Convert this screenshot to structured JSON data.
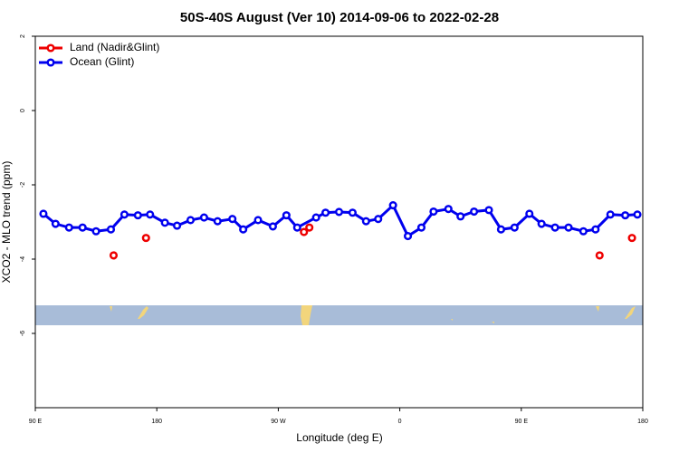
{
  "chart_data": {
    "type": "line",
    "title": "50S-40S August (Ver 10)   2014-09-06 to 2022-02-28",
    "xlabel": "Longitude (deg E)",
    "ylabel": "XCO2 - MLO trend (ppm)",
    "xlim": [
      90,
      540
    ],
    "xticks": [
      {
        "value": 90,
        "label": "90 E"
      },
      {
        "value": 180,
        "label": "180"
      },
      {
        "value": 270,
        "label": "90 W"
      },
      {
        "value": 360,
        "label": "0"
      },
      {
        "value": 450,
        "label": "90 E"
      },
      {
        "value": 540,
        "label": "180"
      }
    ],
    "ylim": [
      -8,
      2
    ],
    "yticks": [
      2,
      0,
      -2,
      -4,
      -6
    ],
    "legend": "top-left",
    "series": [
      {
        "name": "Land (Nadir&Glint)",
        "color": "#ee0000",
        "line": false,
        "x": [
          148,
          172,
          289,
          293,
          508,
          532
        ],
        "values": [
          -3.9,
          -3.43,
          -3.27,
          -3.15,
          -3.9,
          -3.43
        ]
      },
      {
        "name": "Ocean (Glint)",
        "color": "#0000ee",
        "line": true,
        "x": [
          96,
          105,
          115,
          125,
          135,
          146,
          156,
          166,
          175,
          186,
          195,
          205,
          215,
          225,
          236,
          244,
          255,
          266,
          276,
          284,
          298,
          305,
          315,
          325,
          335,
          344,
          355,
          366,
          376,
          385,
          396,
          405,
          415,
          426,
          435,
          445,
          456,
          465,
          475,
          485,
          496,
          505,
          516,
          527,
          536
        ],
        "values": [
          -2.78,
          -3.05,
          -3.15,
          -3.15,
          -3.25,
          -3.2,
          -2.8,
          -2.82,
          -2.8,
          -3.02,
          -3.1,
          -2.95,
          -2.88,
          -2.98,
          -2.92,
          -3.2,
          -2.95,
          -3.12,
          -2.82,
          -3.15,
          -2.88,
          -2.75,
          -2.73,
          -2.75,
          -2.98,
          -2.92,
          -2.55,
          -3.38,
          -3.15,
          -2.72,
          -2.65,
          -2.85,
          -2.72,
          -2.68,
          -3.2,
          -3.15,
          -2.78,
          -3.05,
          -3.15,
          -3.15,
          -3.25,
          -3.2,
          -2.8,
          -2.82,
          -2.8
        ]
      }
    ]
  }
}
